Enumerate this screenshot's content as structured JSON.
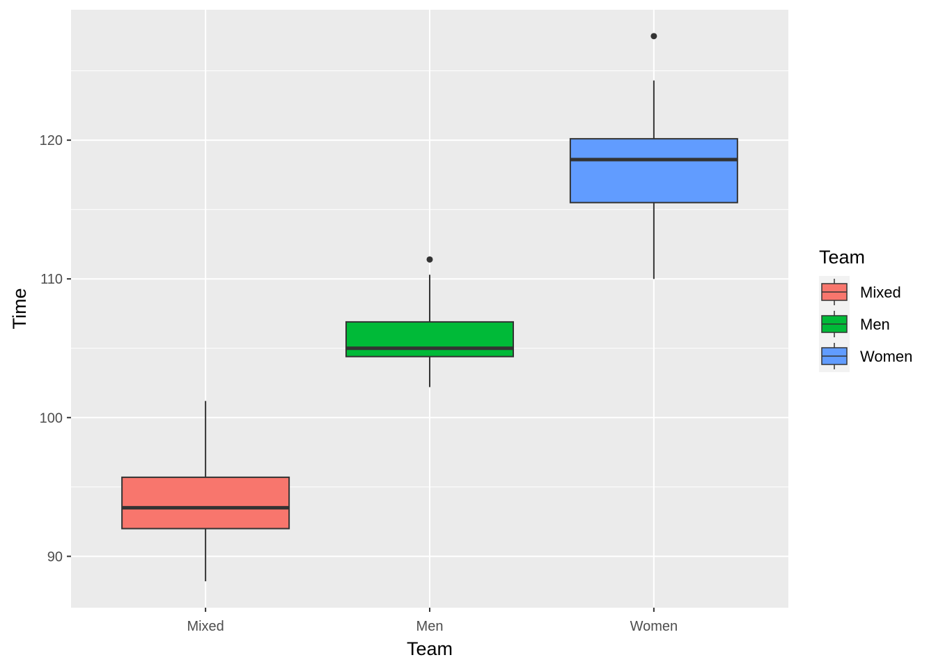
{
  "chart_data": {
    "type": "boxplot",
    "title": "",
    "xlabel": "Team",
    "ylabel": "Time",
    "categories": [
      "Mixed",
      "Men",
      "Women"
    ],
    "ylim": [
      86.3,
      129.4
    ],
    "yticks": [
      90,
      100,
      110,
      120
    ],
    "grid": true,
    "series": [
      {
        "name": "Mixed",
        "color": "#F8766D",
        "lower_whisker": 88.2,
        "q1": 92.0,
        "median": 93.5,
        "q3": 95.7,
        "upper_whisker": 101.2,
        "outliers": []
      },
      {
        "name": "Men",
        "color": "#00BA38",
        "lower_whisker": 102.2,
        "q1": 104.4,
        "median": 105.0,
        "q3": 106.9,
        "upper_whisker": 110.3,
        "outliers": [
          111.4
        ]
      },
      {
        "name": "Women",
        "color": "#619CFF",
        "lower_whisker": 110.0,
        "q1": 115.5,
        "median": 118.6,
        "q3": 120.1,
        "upper_whisker": 124.3,
        "outliers": [
          127.5
        ]
      }
    ],
    "legend": {
      "title": "Team",
      "position": "right",
      "items": [
        "Mixed",
        "Men",
        "Women"
      ]
    }
  }
}
